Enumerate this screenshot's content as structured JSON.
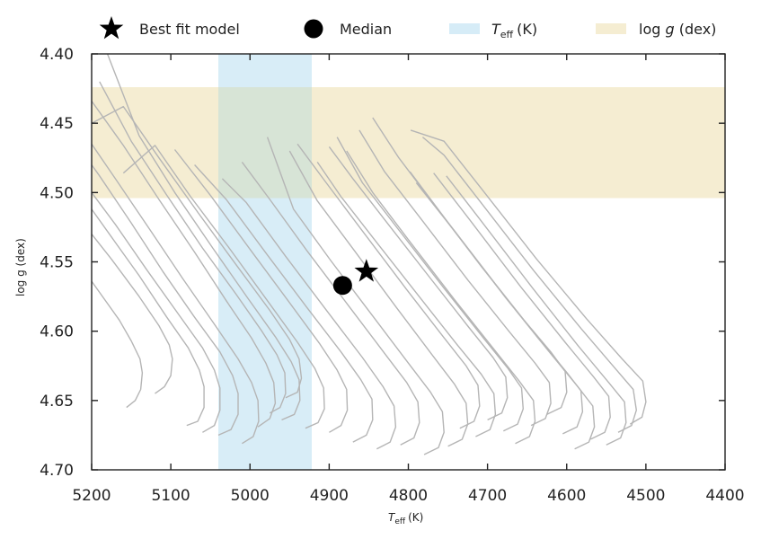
{
  "chart_data": {
    "type": "line",
    "xlabel": "T",
    "xlabel_sub": "eff",
    "xlabel_unit": "(K)",
    "ylabel": "log g (dex)",
    "xlim": [
      5200,
      4400
    ],
    "ylim": [
      4.7,
      4.4
    ],
    "x_inverted": true,
    "y_inverted": true,
    "x_ticks": [
      "5200",
      "5100",
      "5000",
      "4900",
      "4800",
      "4700",
      "4600",
      "4500",
      "4400"
    ],
    "y_ticks": [
      "4.40",
      "4.45",
      "4.50",
      "4.55",
      "4.60",
      "4.65",
      "4.70"
    ],
    "legend": {
      "placement": "top",
      "entries": [
        {
          "label": "Best fit model",
          "marker": "star"
        },
        {
          "label": "Median",
          "marker": "circle"
        },
        {
          "label_main": "T",
          "label_sub": "eff",
          "label_unit": "(K)",
          "marker": "band",
          "color": "#d6ecf7"
        },
        {
          "label_pre": "log ",
          "label_italic": "g",
          "label_unit": " (dex)",
          "marker": "band",
          "color": "#f5edd2"
        }
      ]
    },
    "teff_band": [
      5040,
      4922
    ],
    "logg_band": [
      4.424,
      4.504
    ],
    "band_colors": {
      "teff": "#d6ecf7",
      "logg": "#f5edd2"
    },
    "best_fit": {
      "x": 4853,
      "y": 4.557
    },
    "median": {
      "x": 4883,
      "y": 4.567
    },
    "track_color": "#b5b5b5",
    "tracks": [
      {
        "x": [
          5156,
          5145,
          5138,
          5136,
          5139,
          5150,
          5165,
          5200
        ],
        "y": [
          4.655,
          4.65,
          4.642,
          4.63,
          4.62,
          4.607,
          4.592,
          4.564
        ]
      },
      {
        "x": [
          5120,
          5108,
          5100,
          5098,
          5102,
          5115,
          5140,
          5175,
          5200
        ],
        "y": [
          4.645,
          4.64,
          4.632,
          4.62,
          4.61,
          4.596,
          4.575,
          4.548,
          4.53
        ]
      },
      {
        "x": [
          5080,
          5066,
          5058,
          5058,
          5064,
          5078,
          5105,
          5140,
          5175,
          5200
        ],
        "y": [
          4.668,
          4.665,
          4.655,
          4.64,
          4.628,
          4.612,
          4.59,
          4.56,
          4.532,
          4.512
        ]
      },
      {
        "x": [
          5060,
          5045,
          5038,
          5038,
          5045,
          5060,
          5090,
          5130,
          5170,
          5200
        ],
        "y": [
          4.673,
          4.668,
          4.657,
          4.641,
          4.628,
          4.612,
          4.588,
          4.556,
          4.523,
          4.5
        ]
      },
      {
        "x": [
          5040,
          5024,
          5015,
          5015,
          5022,
          5038,
          5070,
          5110,
          5150,
          5190,
          5200
        ],
        "y": [
          4.675,
          4.671,
          4.66,
          4.645,
          4.632,
          4.615,
          4.59,
          4.557,
          4.522,
          4.488,
          4.48
        ]
      },
      {
        "x": [
          5010,
          4996,
          4989,
          4990,
          4998,
          5015,
          5045,
          5085,
          5125,
          5170,
          5200
        ],
        "y": [
          4.681,
          4.676,
          4.665,
          4.65,
          4.637,
          4.62,
          4.595,
          4.562,
          4.528,
          4.49,
          4.465
        ]
      },
      {
        "x": [
          4990,
          4975,
          4968,
          4970,
          4980,
          4998,
          5030,
          5070,
          5115,
          5160,
          5200
        ],
        "y": [
          4.669,
          4.663,
          4.652,
          4.637,
          4.623,
          4.605,
          4.578,
          4.543,
          4.505,
          4.466,
          4.434
        ]
      },
      {
        "x": [
          4975,
          4962,
          4955,
          4956,
          4966,
          4985,
          5018,
          5060,
          5105,
          5150,
          5190
        ],
        "y": [
          4.659,
          4.655,
          4.645,
          4.63,
          4.617,
          4.6,
          4.573,
          4.54,
          4.502,
          4.463,
          4.42
        ]
      },
      {
        "x": [
          4960,
          4944,
          4937,
          4938,
          4948,
          4968,
          5003,
          5047,
          5095,
          5140,
          5180
        ],
        "y": [
          4.664,
          4.66,
          4.65,
          4.635,
          4.622,
          4.604,
          4.576,
          4.54,
          4.5,
          4.459,
          4.4
        ]
      },
      {
        "x": [
          4955,
          4940,
          4935,
          4938,
          4950,
          4975,
          5015,
          5065,
          5115,
          5160,
          5200
        ],
        "y": [
          4.648,
          4.644,
          4.634,
          4.62,
          4.606,
          4.585,
          4.554,
          4.515,
          4.475,
          4.438,
          4.45
        ]
      },
      {
        "x": [
          4930,
          4914,
          4906,
          4907,
          4918,
          4940,
          4978,
          5025,
          5075,
          5120,
          5160
        ],
        "y": [
          4.67,
          4.666,
          4.656,
          4.641,
          4.627,
          4.608,
          4.578,
          4.541,
          4.503,
          4.466,
          4.486
        ]
      },
      {
        "x": [
          4900,
          4885,
          4877,
          4878,
          4890,
          4912,
          4952,
          5000,
          5050,
          5095
        ],
        "y": [
          4.673,
          4.668,
          4.657,
          4.642,
          4.628,
          4.609,
          4.578,
          4.541,
          4.502,
          4.469
        ]
      },
      {
        "x": [
          4870,
          4853,
          4845,
          4846,
          4860,
          4885,
          4928,
          4978,
          5030,
          5070
        ],
        "y": [
          4.68,
          4.675,
          4.664,
          4.649,
          4.635,
          4.615,
          4.583,
          4.545,
          4.505,
          4.48
        ]
      },
      {
        "x": [
          4840,
          4823,
          4816,
          4818,
          4832,
          4858,
          4902,
          4955,
          5005,
          5035
        ],
        "y": [
          4.685,
          4.68,
          4.669,
          4.654,
          4.64,
          4.619,
          4.586,
          4.546,
          4.507,
          4.49
        ]
      },
      {
        "x": [
          4810,
          4793,
          4786,
          4788,
          4802,
          4830,
          4875,
          4928,
          4975,
          5010
        ],
        "y": [
          4.682,
          4.677,
          4.666,
          4.651,
          4.637,
          4.616,
          4.582,
          4.542,
          4.505,
          4.478
        ]
      },
      {
        "x": [
          4780,
          4762,
          4755,
          4757,
          4772,
          4800,
          4845,
          4898,
          4945,
          4978
        ],
        "y": [
          4.689,
          4.684,
          4.673,
          4.658,
          4.644,
          4.623,
          4.589,
          4.549,
          4.512,
          4.46
        ]
      },
      {
        "x": [
          4750,
          4732,
          4725,
          4727,
          4742,
          4770,
          4815,
          4868,
          4915,
          4950
        ],
        "y": [
          4.683,
          4.678,
          4.667,
          4.652,
          4.638,
          4.617,
          4.583,
          4.542,
          4.506,
          4.47
        ]
      },
      {
        "x": [
          4735,
          4717,
          4710,
          4712,
          4727,
          4756,
          4802,
          4855,
          4905,
          4940
        ],
        "y": [
          4.67,
          4.665,
          4.654,
          4.639,
          4.625,
          4.604,
          4.57,
          4.53,
          4.492,
          4.465
        ]
      },
      {
        "x": [
          4715,
          4697,
          4690,
          4692,
          4708,
          4738,
          4785,
          4840,
          4885,
          4915
        ],
        "y": [
          4.676,
          4.671,
          4.66,
          4.645,
          4.631,
          4.61,
          4.576,
          4.536,
          4.503,
          4.478
        ]
      },
      {
        "x": [
          4700,
          4682,
          4675,
          4677,
          4693,
          4724,
          4772,
          4828,
          4870,
          4900
        ],
        "y": [
          4.664,
          4.659,
          4.648,
          4.633,
          4.619,
          4.597,
          4.562,
          4.521,
          4.49,
          4.467
        ]
      },
      {
        "x": [
          4680,
          4662,
          4655,
          4657,
          4674,
          4705,
          4755,
          4812,
          4858,
          4890
        ],
        "y": [
          4.672,
          4.667,
          4.656,
          4.641,
          4.627,
          4.605,
          4.569,
          4.527,
          4.493,
          4.46
        ]
      },
      {
        "x": [
          4665,
          4647,
          4640,
          4642,
          4660,
          4692,
          4742,
          4800,
          4845,
          4878
        ],
        "y": [
          4.681,
          4.676,
          4.665,
          4.65,
          4.636,
          4.613,
          4.577,
          4.534,
          4.5,
          4.47
        ]
      },
      {
        "x": [
          4645,
          4627,
          4620,
          4622,
          4640,
          4673,
          4725,
          4784,
          4830,
          4862
        ],
        "y": [
          4.668,
          4.663,
          4.652,
          4.637,
          4.623,
          4.6,
          4.563,
          4.519,
          4.485,
          4.455
        ]
      },
      {
        "x": [
          4625,
          4607,
          4600,
          4602,
          4620,
          4654,
          4707,
          4767,
          4812,
          4845
        ],
        "y": [
          4.66,
          4.655,
          4.644,
          4.629,
          4.615,
          4.592,
          4.554,
          4.509,
          4.475,
          4.446
        ]
      },
      {
        "x": [
          4605,
          4587,
          4580,
          4582,
          4601,
          4636,
          4690,
          4752,
          4798
        ],
        "y": [
          4.674,
          4.669,
          4.658,
          4.643,
          4.629,
          4.605,
          4.566,
          4.52,
          4.485
        ]
      },
      {
        "x": [
          4590,
          4572,
          4565,
          4567,
          4586,
          4622,
          4677,
          4740,
          4790
        ],
        "y": [
          4.685,
          4.68,
          4.669,
          4.654,
          4.64,
          4.615,
          4.576,
          4.529,
          4.493
        ]
      },
      {
        "x": [
          4570,
          4552,
          4545,
          4547,
          4566,
          4602,
          4658,
          4722,
          4768
        ],
        "y": [
          4.678,
          4.673,
          4.662,
          4.647,
          4.633,
          4.608,
          4.568,
          4.52,
          4.486
        ]
      },
      {
        "x": [
          4550,
          4532,
          4525,
          4527,
          4547,
          4585,
          4643,
          4710,
          4752
        ],
        "y": [
          4.682,
          4.677,
          4.666,
          4.651,
          4.637,
          4.611,
          4.569,
          4.519,
          4.488
        ]
      },
      {
        "x": [
          4535,
          4518,
          4512,
          4516,
          4540,
          4582,
          4642,
          4710,
          4755,
          4782
        ],
        "y": [
          4.673,
          4.668,
          4.657,
          4.642,
          4.626,
          4.598,
          4.556,
          4.506,
          4.473,
          4.46
        ]
      },
      {
        "x": [
          4520,
          4505,
          4500,
          4504,
          4530,
          4575,
          4638,
          4708,
          4755,
          4797
        ],
        "y": [
          4.667,
          4.662,
          4.651,
          4.636,
          4.62,
          4.591,
          4.548,
          4.497,
          4.463,
          4.455
        ]
      }
    ]
  }
}
